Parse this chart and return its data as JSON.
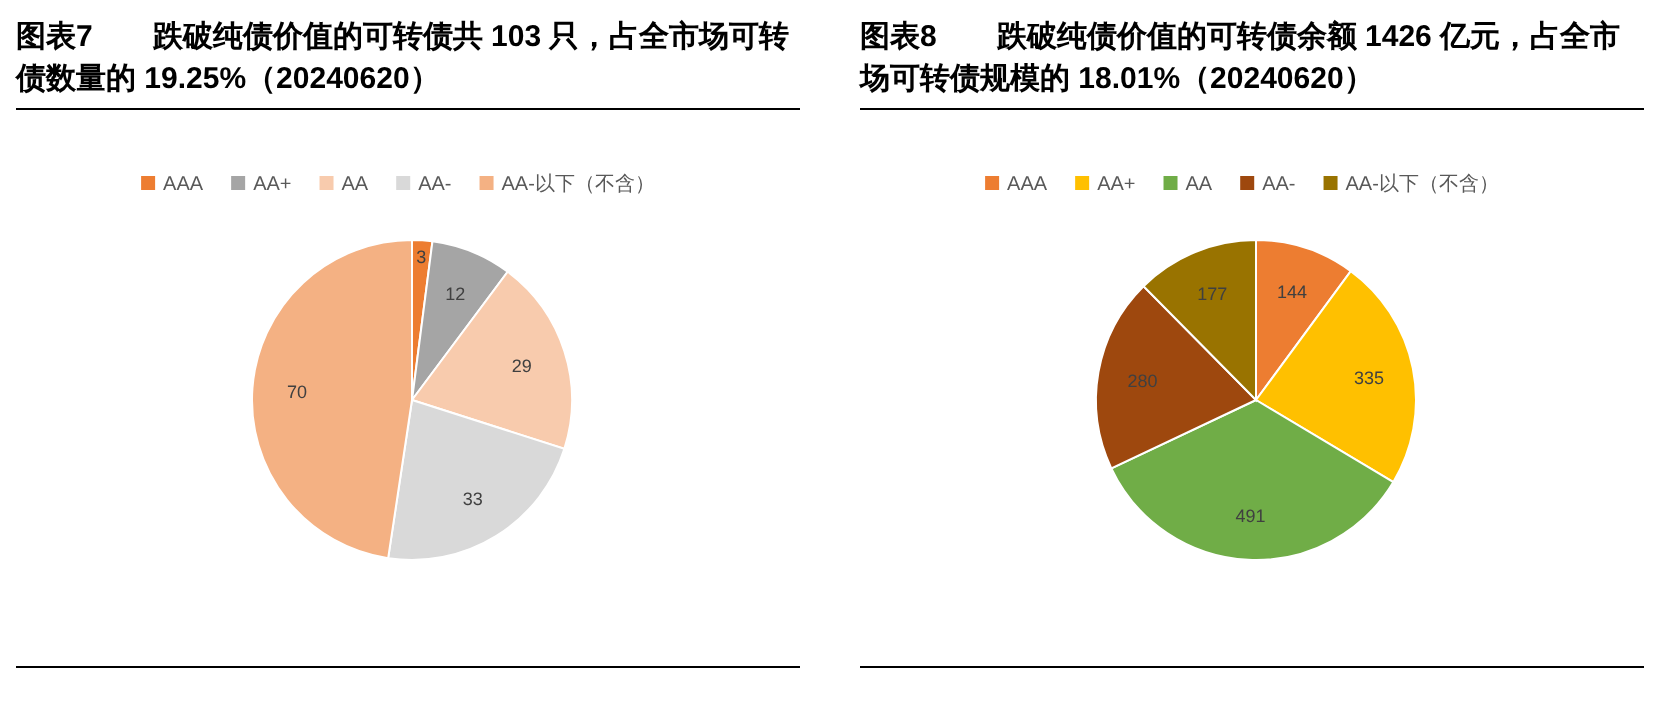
{
  "chart_data": [
    {
      "type": "pie",
      "title": "图表7　　跌破纯债价值的可转债共 103 只，占全市场可转债数量的 19.25%（20240620）",
      "categories": [
        "AAA",
        "AA+",
        "AA",
        "AA-",
        "AA-以下（不含）"
      ],
      "values": [
        3,
        12,
        29,
        33,
        70
      ],
      "colors": [
        "#ed7d31",
        "#a5a5a5",
        "#f8cbad",
        "#d9d9d9",
        "#f4b183"
      ],
      "legend": "top",
      "data_labels": true
    },
    {
      "type": "pie",
      "title": "图表8　　跌破纯债价值的可转债余额 1426 亿元，占全市场可转债规模的 18.01%（20240620）",
      "categories": [
        "AAA",
        "AA+",
        "AA",
        "AA-",
        "AA-以下（不含）"
      ],
      "values": [
        144,
        335,
        491,
        280,
        177
      ],
      "colors": [
        "#ed7d31",
        "#ffc000",
        "#70ad47",
        "#9e480e",
        "#997300"
      ],
      "legend": "top",
      "data_labels": true
    }
  ]
}
